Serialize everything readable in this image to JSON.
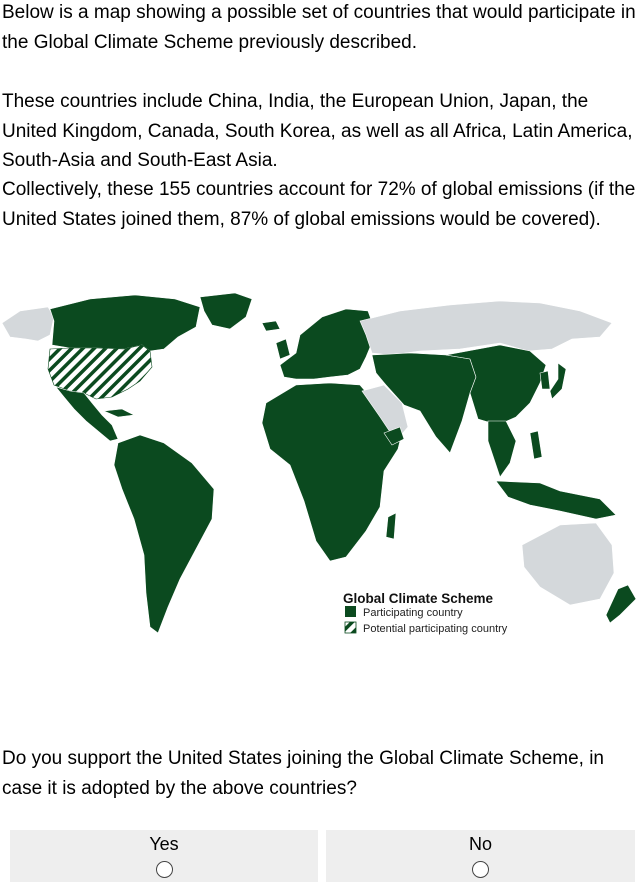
{
  "survey": {
    "intro": "Below is a map showing a possible set of countries that would participate in the Global Climate Scheme previously described.",
    "countries_text": "These countries include China, India, the European Union, Japan, the United Kingdom, Canada, South Korea, as well as all Africa, Latin America, South-Asia and South-East Asia.",
    "collective_text": "Collectively, these 155 countries account for 72% of global emissions (if the United States joined them, 87% of global emissions would be covered).",
    "question": "Do you support the United States joining the Global Climate Scheme, in case it is adopted by the above countries?",
    "options": [
      {
        "label": "Yes",
        "selected": false
      },
      {
        "label": "No",
        "selected": false
      }
    ]
  },
  "map": {
    "legend_title": "Global Climate Scheme",
    "legend_items": [
      {
        "label": "Participating country",
        "pattern": "solid"
      },
      {
        "label": "Potential participating country",
        "pattern": "hatched"
      }
    ],
    "colors": {
      "participating": "#0b4a1f",
      "non_participating": "#d4d8db",
      "ocean": "#ffffff",
      "hatch": "#0b4a1f"
    }
  }
}
